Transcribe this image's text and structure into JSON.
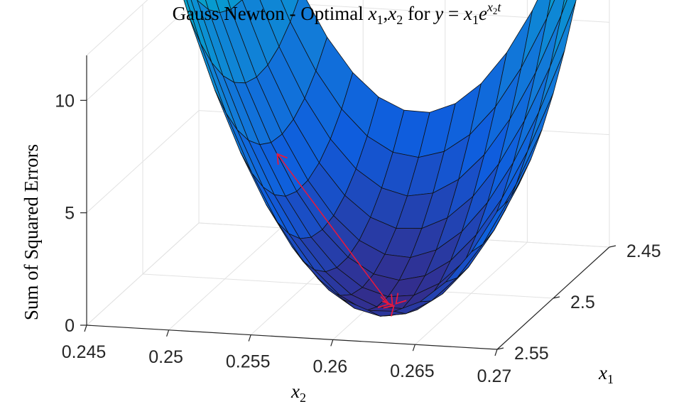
{
  "chart_data": {
    "type": "surface",
    "title": {
      "prefix": "Gauss Newton - Optimal ",
      "vars": [
        "x",
        "1",
        ",",
        "x",
        "2"
      ],
      "for_text": " for ",
      "equation": [
        "y",
        " = ",
        "x",
        "1",
        "e",
        "x",
        "2",
        "t"
      ]
    },
    "xlabel": {
      "base": "x",
      "sub": "2"
    },
    "ylabel": {
      "base": "x",
      "sub": "1"
    },
    "zlabel": "Sum of Squared Errors",
    "x_ticks": [
      "0.245",
      "0.25",
      "0.255",
      "0.26",
      "0.265",
      "0.27"
    ],
    "y_ticks": [
      "2.45",
      "2.5",
      "2.55"
    ],
    "z_ticks": [
      "0",
      "5",
      "10"
    ],
    "xlim": [
      0.245,
      0.27
    ],
    "ylim": [
      2.45,
      2.55
    ],
    "zlim": [
      0,
      12
    ],
    "grid": true,
    "colormap": "parula",
    "surface_grid": {
      "x_steps": 16,
      "y_steps": 10
    },
    "surface_corner_values": {
      "x0.245_y2.55": 5.1,
      "x0.245_y2.45": 12.2,
      "x0.27_y2.55": 0.8,
      "x0.27_y2.45": 2.6,
      "minimum": 0.05
    },
    "optimization_path": {
      "color": "#e8183c",
      "points": [
        {
          "x2": 0.2508,
          "x1": 2.465,
          "sse": 4.0
        },
        {
          "x2": 0.2612,
          "x1": 2.517,
          "sse": 0.1
        },
        {
          "x2": 0.2613,
          "x1": 2.516,
          "sse": 0.05
        },
        {
          "x2": 0.2613,
          "x1": 2.516,
          "sse": 0.05
        }
      ]
    }
  }
}
